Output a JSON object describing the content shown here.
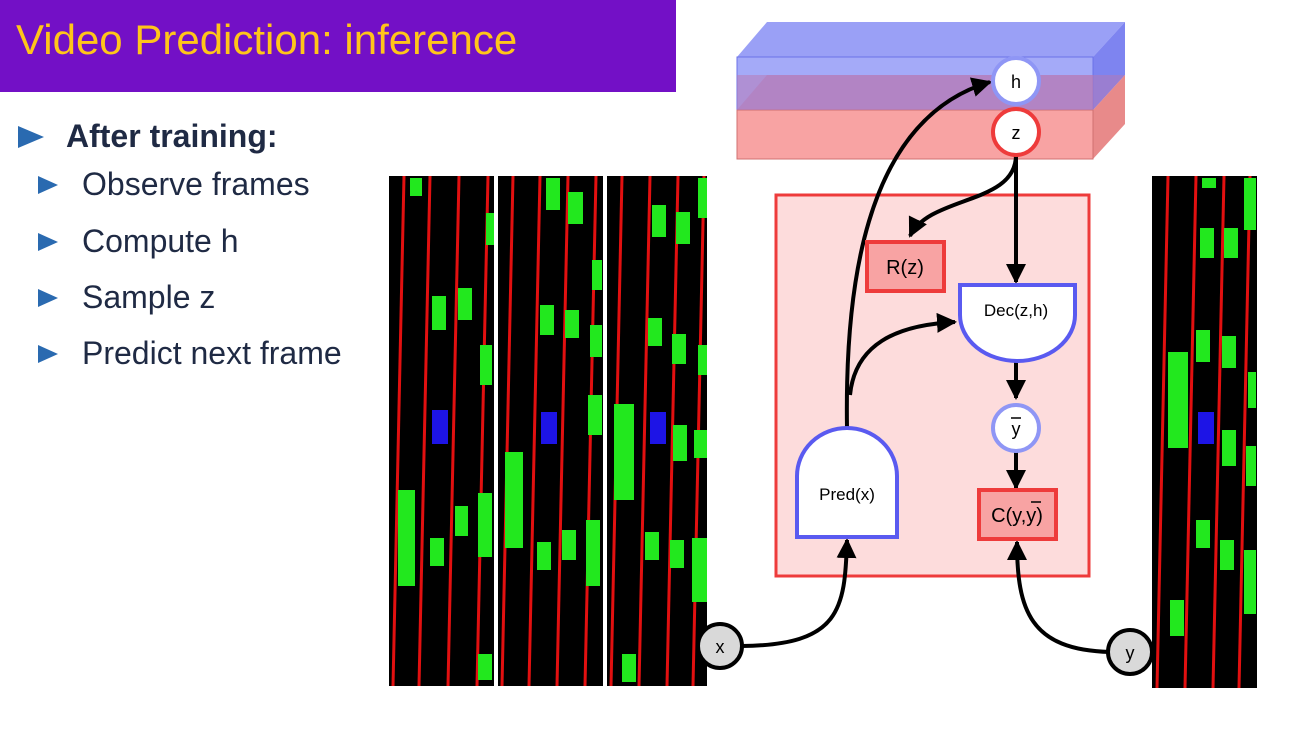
{
  "title": "Video Prediction: inference",
  "bullets": {
    "heading": "After training:",
    "items": [
      "Observe frames",
      "Compute h",
      "Sample z",
      "Predict next frame"
    ]
  },
  "diagram": {
    "nodes": {
      "h": "h",
      "z": "z",
      "rz": "R(z)",
      "dec": "Dec(z,h)",
      "ybar": "y",
      "cost": "C(y,y)",
      "pred": "Pred(x)",
      "x": "x",
      "y": "y"
    }
  },
  "colors": {
    "title_bg": "#7310c6",
    "title_text": "#ffc51a",
    "bullet_marker": "#2a6ab0",
    "latent_box_blue": "#9aa2f6",
    "latent_box_red": "#f8a3a3",
    "model_box_fill": "#fddcdc",
    "model_box_border": "#ee3b3b",
    "module_border": "#5a5af0",
    "frame_bg": "#000000",
    "frame_red_line": "#e21010",
    "frame_green": "#22e81e",
    "frame_blue": "#1d14e6"
  }
}
